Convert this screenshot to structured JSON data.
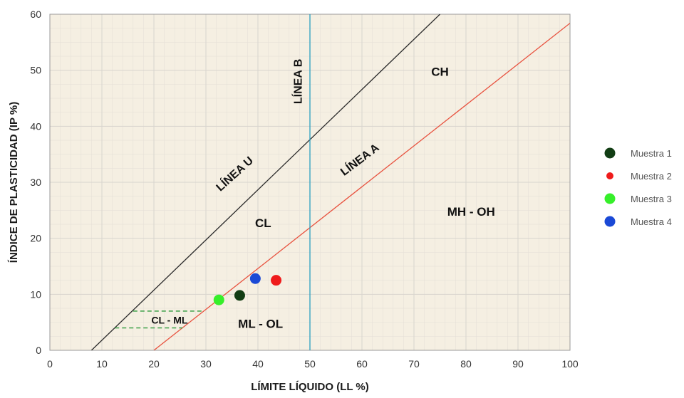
{
  "chart_data": {
    "type": "scatter",
    "xlabel": "LÍMITE LÍQUIDO (LL %)",
    "ylabel": "ÍNDICE DE PLASTICIDAD (IP %)",
    "xlim": [
      0,
      100
    ],
    "ylim": [
      0,
      60
    ],
    "xticks": [
      0,
      10,
      20,
      30,
      40,
      50,
      60,
      70,
      80,
      90,
      100
    ],
    "yticks": [
      0,
      10,
      20,
      30,
      40,
      50,
      60
    ],
    "grid": true,
    "legend_position": "right",
    "colors": {
      "background": "#f5efe2",
      "grid": "#d8d4ce",
      "line_u": "#2b2b2b",
      "line_a": "#e8523f",
      "line_b": "#2a9fc0",
      "cl_ml": "#2e9a3c"
    },
    "reference_lines": [
      {
        "id": "line_u",
        "label": "LÍNEA U",
        "points": [
          [
            8,
            0
          ],
          [
            75,
            60
          ]
        ],
        "color": "#2b2b2b"
      },
      {
        "id": "line_a",
        "label": "LÍNEA A",
        "points": [
          [
            20,
            0
          ],
          [
            100,
            58.4
          ]
        ],
        "color": "#e8523f"
      },
      {
        "id": "line_b",
        "label": "LÍNEA B",
        "points": [
          [
            50,
            0
          ],
          [
            50,
            60
          ]
        ],
        "color": "#2a9fc0"
      }
    ],
    "cl_ml_band": {
      "label": "CL - ML",
      "upper": [
        [
          16,
          7
        ],
        [
          29.5,
          7
        ]
      ],
      "lower": [
        [
          12.5,
          4
        ],
        [
          25.5,
          4
        ]
      ],
      "label_pos": [
        23,
        5.4
      ]
    },
    "zones": [
      {
        "label": "CH",
        "x": 75,
        "y": 49
      },
      {
        "label": "CL",
        "x": 41,
        "y": 22
      },
      {
        "label": "MH - OH",
        "x": 81,
        "y": 24
      },
      {
        "label": "ML - OL",
        "x": 40.5,
        "y": 4
      }
    ],
    "line_labels": [
      {
        "id": "line_u",
        "text": "LÍNEA U",
        "x": 36,
        "y": 31,
        "angle": -42
      },
      {
        "id": "line_a",
        "text": "LÍNEA A",
        "x": 60,
        "y": 33.5,
        "angle": -37
      },
      {
        "id": "line_b",
        "text": "LÍNEA B",
        "x": 48.4,
        "y": 48,
        "angle": -90
      }
    ],
    "series": [
      {
        "name": "Muestra 1",
        "color": "#123d14",
        "x": [
          36.5
        ],
        "y": [
          9.8
        ]
      },
      {
        "name": "Muestra 2",
        "color": "#ef1b1b",
        "x": [
          43.5
        ],
        "y": [
          12.5
        ]
      },
      {
        "name": "Muestra 3",
        "color": "#36ef2a",
        "x": [
          32.5
        ],
        "y": [
          9.0
        ]
      },
      {
        "name": "Muestra 4",
        "color": "#1a49d6",
        "x": [
          39.5
        ],
        "y": [
          12.8
        ]
      }
    ]
  }
}
